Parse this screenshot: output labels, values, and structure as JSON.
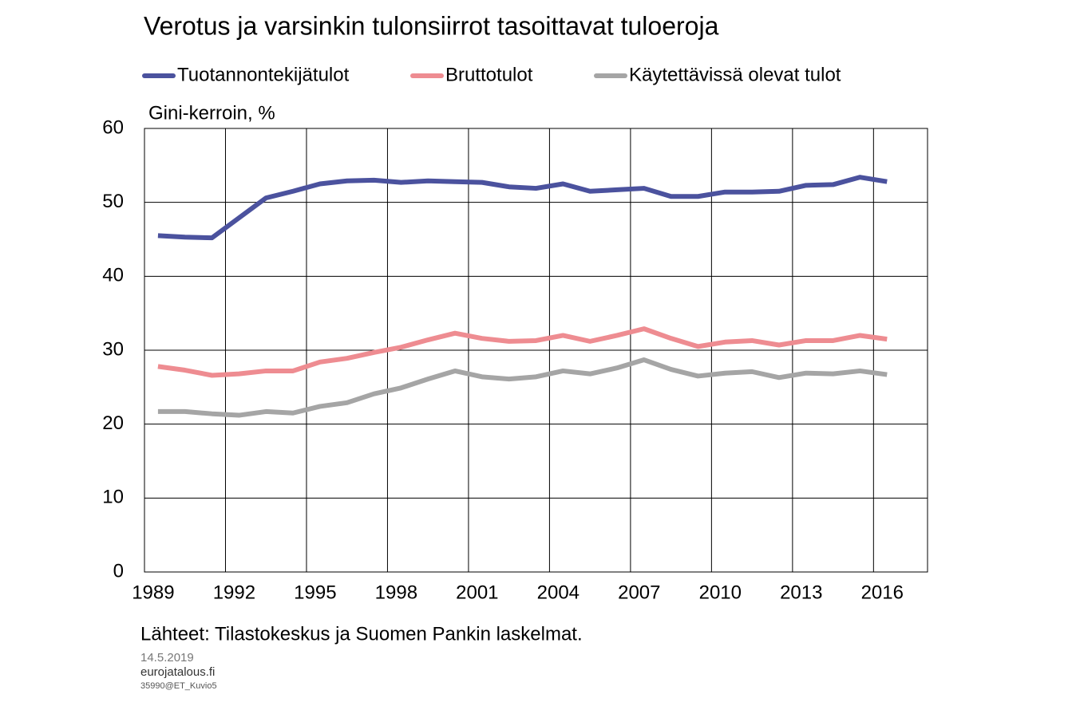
{
  "chart_data": {
    "type": "line",
    "title": "Verotus ja varsinkin tulonsiirrot tasoittavat tuloeroja",
    "y_label": "Gini-kerroin, %",
    "x": [
      1989,
      1990,
      1991,
      1992,
      1993,
      1994,
      1995,
      1996,
      1997,
      1998,
      1999,
      2000,
      2001,
      2002,
      2003,
      2004,
      2005,
      2006,
      2007,
      2008,
      2009,
      2010,
      2011,
      2012,
      2013,
      2014,
      2015,
      2016
    ],
    "xlim": [
      1988.5,
      2017.5
    ],
    "xticks": [
      1989,
      1992,
      1995,
      1998,
      2001,
      2004,
      2007,
      2010,
      2013,
      2016
    ],
    "ylim": [
      0,
      60
    ],
    "yticks": [
      0,
      10,
      20,
      30,
      40,
      50,
      60
    ],
    "grid": true,
    "series": [
      {
        "name": "Tuotannontekijätulot",
        "color": "#4b529e",
        "values": [
          45.5,
          45.3,
          45.2,
          47.9,
          50.6,
          51.5,
          52.5,
          52.9,
          53.0,
          52.7,
          52.9,
          52.8,
          52.7,
          52.1,
          51.9,
          52.5,
          51.5,
          51.7,
          51.9,
          50.8,
          50.8,
          51.4,
          51.4,
          51.5,
          52.3,
          52.4,
          53.4,
          52.8
        ]
      },
      {
        "name": "Bruttotulot",
        "color": "#ee8c91",
        "values": [
          27.8,
          27.3,
          26.6,
          26.8,
          27.2,
          27.2,
          28.4,
          28.9,
          29.7,
          30.4,
          31.4,
          32.3,
          31.6,
          31.2,
          31.3,
          32.0,
          31.2,
          32.0,
          32.9,
          31.6,
          30.5,
          31.1,
          31.3,
          30.7,
          31.3,
          31.3,
          32.0,
          31.5
        ]
      },
      {
        "name": "Käytettävissä olevat tulot",
        "color": "#a5a5a5",
        "values": [
          21.7,
          21.7,
          21.4,
          21.2,
          21.7,
          21.5,
          22.4,
          22.9,
          24.1,
          24.9,
          26.1,
          27.2,
          26.4,
          26.1,
          26.4,
          27.2,
          26.8,
          27.6,
          28.7,
          27.4,
          26.5,
          26.9,
          27.1,
          26.3,
          26.9,
          26.8,
          27.2,
          26.7
        ]
      }
    ]
  },
  "footer": {
    "source": "Lähteet: Tilastokeskus ja Suomen Pankin laskelmat.",
    "date": "14.5.2019",
    "site": "eurojatalous.fi",
    "code": "35990@ET_Kuvio5"
  }
}
